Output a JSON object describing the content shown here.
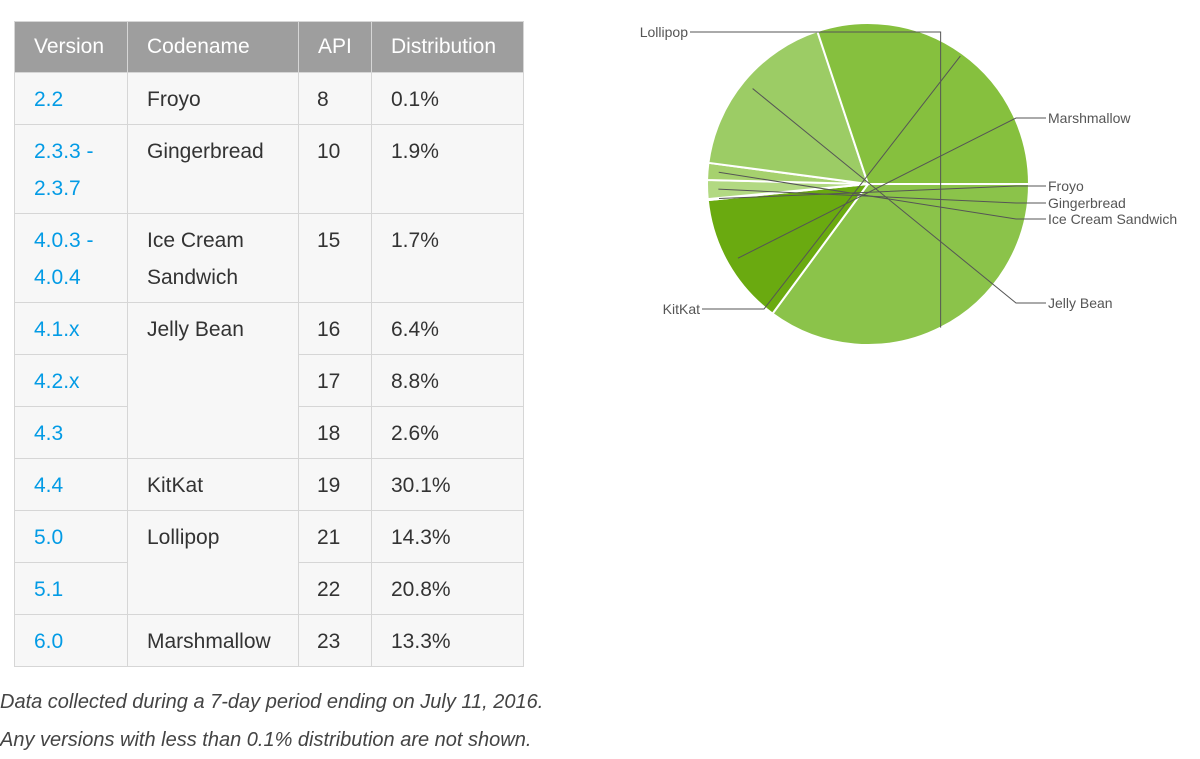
{
  "table": {
    "headers": {
      "version": "Version",
      "codename": "Codename",
      "api": "API",
      "distribution": "Distribution"
    },
    "rows": [
      {
        "version": "2.2",
        "codename": "Froyo",
        "api": "8",
        "distribution": "0.1%"
      },
      {
        "version": "2.3.3 - 2.3.7",
        "codename": "Gingerbread",
        "api": "10",
        "distribution": "1.9%"
      },
      {
        "version": "4.0.3 - 4.0.4",
        "codename": "Ice Cream Sandwich",
        "api": "15",
        "distribution": "1.7%"
      },
      {
        "version": "4.1.x",
        "codename": "Jelly Bean",
        "api": "16",
        "distribution": "6.4%"
      },
      {
        "version": "4.2.x",
        "api": "17",
        "distribution": "8.8%"
      },
      {
        "version": "4.3",
        "api": "18",
        "distribution": "2.6%"
      },
      {
        "version": "4.4",
        "codename": "KitKat",
        "api": "19",
        "distribution": "30.1%"
      },
      {
        "version": "5.0",
        "codename": "Lollipop",
        "api": "21",
        "distribution": "14.3%"
      },
      {
        "version": "5.1",
        "api": "22",
        "distribution": "20.8%"
      },
      {
        "version": "6.0",
        "codename": "Marshmallow",
        "api": "23",
        "distribution": "13.3%"
      }
    ]
  },
  "notes": {
    "line1": "Data collected during a 7-day period ending on July 11, 2016.",
    "line2": "Any versions with less than 0.1% distribution are not shown."
  },
  "chart_data": {
    "type": "pie",
    "title": "",
    "slices": [
      {
        "label": "Lollipop",
        "value": 35.1,
        "color": "#8bc34a"
      },
      {
        "label": "Marshmallow",
        "value": 13.3,
        "color": "#6aaa10"
      },
      {
        "label": "Froyo",
        "value": 0.1,
        "color": "#c5e1a5"
      },
      {
        "label": "Gingerbread",
        "value": 1.9,
        "color": "#b2d982"
      },
      {
        "label": "Ice Cream Sandwich",
        "value": 1.7,
        "color": "#a6d16e"
      },
      {
        "label": "Jelly Bean",
        "value": 17.8,
        "color": "#9ccc65"
      },
      {
        "label": "KitKat",
        "value": 30.1,
        "color": "#86c03e"
      }
    ],
    "start_angle_deg": 0,
    "direction": "clockwise-from-3-oclock",
    "legend": "none",
    "slice_separator_color": "#ffffff"
  }
}
